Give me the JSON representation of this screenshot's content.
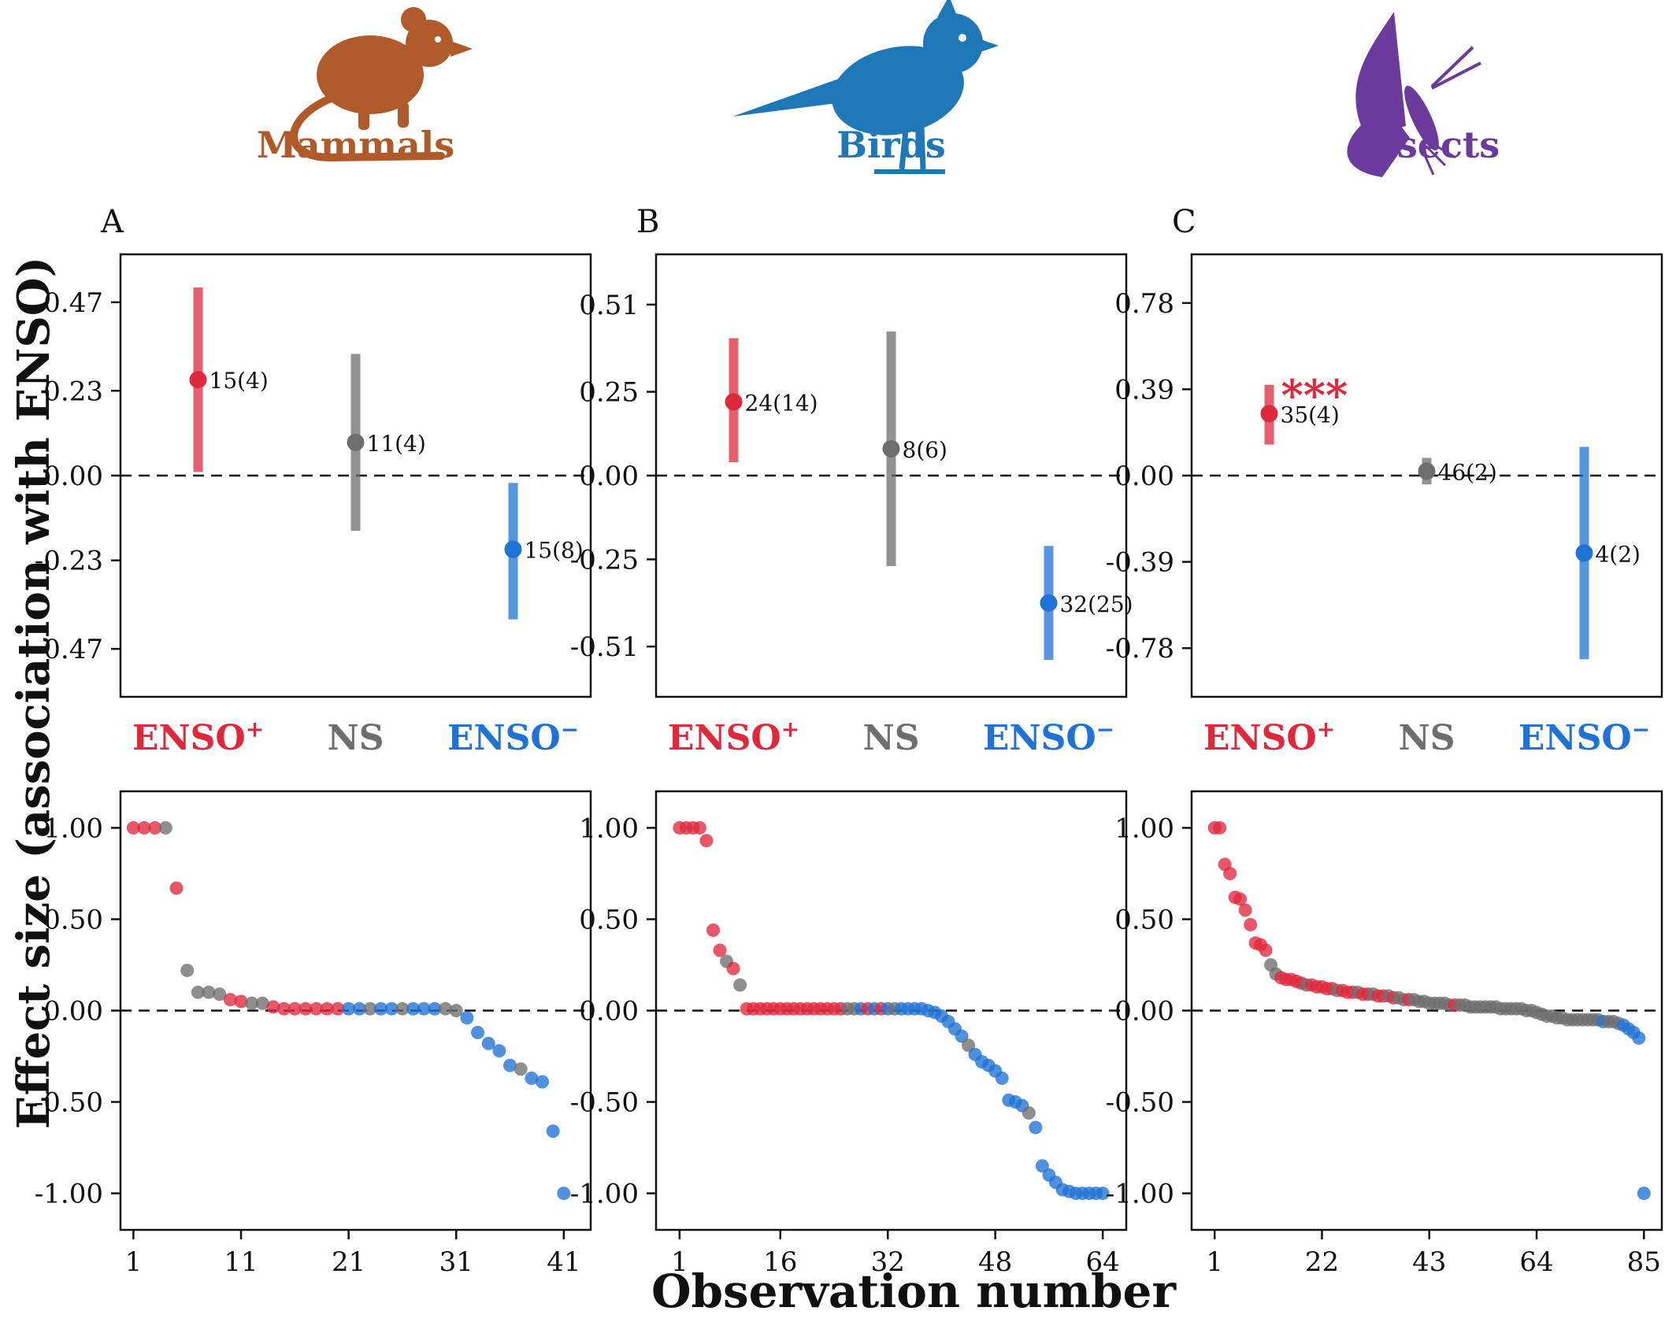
{
  "figure": {
    "ylabel": "Effect size (association with ENSO)",
    "xlabel": "Observation number",
    "category_labels": [
      "ENSO",
      "NS",
      "ENSO"
    ],
    "category_superscripts": [
      "+",
      "",
      "−"
    ]
  },
  "colors": {
    "enso_pos": "#e0283c",
    "ns": "#6e6e6e",
    "enso_neg": "#1f72d6",
    "mammals": "#b05a2a",
    "birds": "#1e78b8",
    "insects": "#6a3b9c"
  },
  "panels": [
    {
      "letter": "A",
      "taxon": "Mammals",
      "taxon_color": "#b05a2a",
      "icon": "mouse-icon",
      "summary": {
        "ylim": [
          -0.6,
          0.6
        ],
        "yticks": [
          "0.47",
          "0.23",
          "0.00",
          "-0.23",
          "-0.47"
        ],
        "ytick_values": [
          0.47,
          0.23,
          0.0,
          -0.23,
          -0.47
        ],
        "points": [
          {
            "category": "ENSO+",
            "mean": 0.26,
            "low": 0.01,
            "high": 0.51,
            "label": "15(4)",
            "color": "#e0283c"
          },
          {
            "category": "NS",
            "mean": 0.09,
            "low": -0.15,
            "high": 0.33,
            "label": "11(4)",
            "color": "#6e6e6e"
          },
          {
            "category": "ENSO-",
            "mean": -0.2,
            "low": -0.39,
            "high": -0.02,
            "label": "15(8)",
            "color": "#1f72d6"
          }
        ]
      },
      "observations": {
        "xticks": [
          "1",
          "11",
          "21",
          "31",
          "41"
        ],
        "xtick_values": [
          1,
          11,
          21,
          31,
          41
        ],
        "xlim": [
          -0.2,
          43.5
        ],
        "yticks": [
          "1.00",
          "0.50",
          "0.00",
          "-0.50",
          "-1.00"
        ],
        "ytick_values": [
          1.0,
          0.5,
          0.0,
          -0.5,
          -1.0
        ],
        "ylim": [
          -1.2,
          1.2
        ]
      }
    },
    {
      "letter": "B",
      "taxon": "Birds",
      "taxon_color": "#1e78b8",
      "icon": "bird-icon",
      "summary": {
        "ylim": [
          -0.66,
          0.66
        ],
        "yticks": [
          "0.51",
          "0.25",
          "0.00",
          "-0.25",
          "-0.51"
        ],
        "ytick_values": [
          0.51,
          0.25,
          0.0,
          -0.25,
          -0.51
        ],
        "points": [
          {
            "category": "ENSO+",
            "mean": 0.22,
            "low": 0.04,
            "high": 0.41,
            "label": "24(14)",
            "color": "#e0283c"
          },
          {
            "category": "NS",
            "mean": 0.08,
            "low": -0.27,
            "high": 0.43,
            "label": "8(6)",
            "color": "#6e6e6e"
          },
          {
            "category": "ENSO-",
            "mean": -0.38,
            "low": -0.55,
            "high": -0.21,
            "label": "32(25)",
            "color": "#1f72d6"
          }
        ]
      },
      "observations": {
        "xticks": [
          "1",
          "16",
          "32",
          "48",
          "64"
        ],
        "xtick_values": [
          1,
          16,
          32,
          48,
          64
        ],
        "xlim": [
          -2.5,
          67.5
        ],
        "yticks": [
          "1.00",
          "0.50",
          "0.00",
          "-0.50",
          "-1.00"
        ],
        "ytick_values": [
          1.0,
          0.5,
          0.0,
          -0.5,
          -1.0
        ],
        "ylim": [
          -1.2,
          1.2
        ]
      }
    },
    {
      "letter": "C",
      "taxon": "Insects",
      "taxon_color": "#6a3b9c",
      "icon": "butterfly-icon",
      "summary": {
        "ylim": [
          -1.0,
          1.0
        ],
        "yticks": [
          "0.78",
          "0.39",
          "0.00",
          "-0.39",
          "-0.78"
        ],
        "ytick_values": [
          0.78,
          0.39,
          0.0,
          -0.39,
          -0.78
        ],
        "significance": "***",
        "points": [
          {
            "category": "ENSO+",
            "mean": 0.28,
            "low": 0.14,
            "high": 0.41,
            "label": "35(4)",
            "color": "#e0283c"
          },
          {
            "category": "NS",
            "mean": 0.02,
            "low": -0.04,
            "high": 0.08,
            "label": "46(2)",
            "color": "#6e6e6e"
          },
          {
            "category": "ENSO-",
            "mean": -0.35,
            "low": -0.83,
            "high": 0.13,
            "label": "4(2)",
            "color": "#1f72d6"
          }
        ]
      },
      "observations": {
        "xticks": [
          "1",
          "22",
          "43",
          "64",
          "85"
        ],
        "xtick_values": [
          1,
          22,
          43,
          64,
          85
        ],
        "xlim": [
          -3.5,
          88.5
        ],
        "yticks": [
          "1.00",
          "0.50",
          "0.00",
          "-0.50",
          "-1.00"
        ],
        "ytick_values": [
          1.0,
          0.5,
          0.0,
          -0.5,
          -1.0
        ],
        "ylim": [
          -1.2,
          1.2
        ]
      }
    }
  ],
  "chart_data": [
    {
      "type": "scatter",
      "panel": "A",
      "taxon": "Mammals",
      "x": [
        1,
        2,
        3,
        4,
        5,
        6,
        7,
        8,
        9,
        10,
        11,
        12,
        13,
        14,
        15,
        16,
        17,
        18,
        19,
        20,
        21,
        22,
        23,
        24,
        25,
        26,
        27,
        28,
        29,
        30,
        31,
        32,
        33,
        34,
        35,
        36,
        37,
        38,
        39,
        40,
        41
      ],
      "y": [
        1.0,
        1.0,
        1.0,
        1.0,
        0.67,
        0.22,
        0.1,
        0.1,
        0.09,
        0.06,
        0.05,
        0.04,
        0.04,
        0.02,
        0.01,
        0.01,
        0.01,
        0.01,
        0.01,
        0.01,
        0.01,
        0.01,
        0.01,
        0.01,
        0.01,
        0.01,
        0.01,
        0.01,
        0.01,
        0.01,
        0.0,
        -0.04,
        -0.12,
        -0.18,
        -0.22,
        -0.3,
        -0.32,
        -0.37,
        -0.39,
        -0.66,
        -1.0
      ],
      "group": [
        "ENSO+",
        "ENSO+",
        "ENSO+",
        "NS",
        "ENSO+",
        "NS",
        "NS",
        "NS",
        "NS",
        "ENSO+",
        "ENSO+",
        "NS",
        "NS",
        "ENSO+",
        "ENSO+",
        "ENSO+",
        "ENSO+",
        "ENSO+",
        "ENSO+",
        "ENSO+",
        "ENSO-",
        "ENSO-",
        "NS",
        "ENSO-",
        "ENSO-",
        "NS",
        "ENSO-",
        "ENSO-",
        "ENSO-",
        "NS",
        "NS",
        "ENSO-",
        "ENSO-",
        "ENSO-",
        "ENSO-",
        "ENSO-",
        "NS",
        "ENSO-",
        "ENSO-",
        "ENSO-",
        "ENSO-"
      ],
      "xlabel": "Observation number",
      "ylabel": "Effect size (association with ENSO)"
    },
    {
      "type": "scatter",
      "panel": "B",
      "taxon": "Birds",
      "x": [
        1,
        2,
        3,
        4,
        5,
        6,
        7,
        8,
        9,
        10,
        11,
        12,
        13,
        14,
        15,
        16,
        17,
        18,
        19,
        20,
        21,
        22,
        23,
        24,
        25,
        26,
        27,
        28,
        29,
        30,
        31,
        32,
        33,
        34,
        35,
        36,
        37,
        38,
        39,
        40,
        41,
        42,
        43,
        44,
        45,
        46,
        47,
        48,
        49,
        50,
        51,
        52,
        53,
        54,
        55,
        56,
        57,
        58,
        59,
        60,
        61,
        62,
        63,
        64
      ],
      "y": [
        1.0,
        1.0,
        1.0,
        1.0,
        0.93,
        0.44,
        0.33,
        0.27,
        0.23,
        0.14,
        0.01,
        0.01,
        0.01,
        0.01,
        0.01,
        0.01,
        0.01,
        0.01,
        0.01,
        0.01,
        0.01,
        0.01,
        0.01,
        0.01,
        0.01,
        0.01,
        0.01,
        0.01,
        0.01,
        0.01,
        0.01,
        0.01,
        0.01,
        0.01,
        0.01,
        0.01,
        0.01,
        0.0,
        -0.01,
        -0.03,
        -0.06,
        -0.1,
        -0.14,
        -0.19,
        -0.24,
        -0.28,
        -0.3,
        -0.33,
        -0.37,
        -0.49,
        -0.5,
        -0.52,
        -0.56,
        -0.64,
        -0.85,
        -0.9,
        -0.94,
        -0.98,
        -0.99,
        -1.0,
        -1.0,
        -1.0,
        -1.0,
        -1.0
      ],
      "group": [
        "ENSO+",
        "ENSO+",
        "ENSO+",
        "ENSO+",
        "ENSO+",
        "ENSO+",
        "ENSO+",
        "NS",
        "ENSO+",
        "NS",
        "ENSO+",
        "ENSO+",
        "ENSO+",
        "ENSO+",
        "ENSO+",
        "ENSO+",
        "ENSO+",
        "ENSO+",
        "ENSO+",
        "ENSO+",
        "ENSO+",
        "ENSO+",
        "ENSO+",
        "ENSO+",
        "ENSO+",
        "NS",
        "NS",
        "ENSO-",
        "ENSO+",
        "ENSO-",
        "ENSO+",
        "ENSO-",
        "NS",
        "ENSO-",
        "ENSO-",
        "ENSO-",
        "ENSO-",
        "ENSO-",
        "ENSO-",
        "ENSO-",
        "ENSO-",
        "ENSO-",
        "ENSO-",
        "NS",
        "ENSO-",
        "ENSO-",
        "ENSO-",
        "ENSO-",
        "ENSO-",
        "ENSO-",
        "ENSO-",
        "ENSO-",
        "NS",
        "ENSO-",
        "ENSO-",
        "ENSO-",
        "ENSO-",
        "ENSO-",
        "ENSO-",
        "ENSO-",
        "ENSO-",
        "ENSO-",
        "ENSO-",
        "ENSO-"
      ],
      "xlabel": "Observation number",
      "ylabel": "Effect size (association with ENSO)"
    },
    {
      "type": "scatter",
      "panel": "C",
      "taxon": "Insects",
      "x": [
        1,
        2,
        3,
        4,
        5,
        6,
        7,
        8,
        9,
        10,
        11,
        12,
        13,
        14,
        15,
        16,
        17,
        18,
        19,
        20,
        21,
        22,
        23,
        24,
        25,
        26,
        27,
        28,
        29,
        30,
        31,
        32,
        33,
        34,
        35,
        36,
        37,
        38,
        39,
        40,
        41,
        42,
        43,
        44,
        45,
        46,
        47,
        48,
        49,
        50,
        51,
        52,
        53,
        54,
        55,
        56,
        57,
        58,
        59,
        60,
        61,
        62,
        63,
        64,
        65,
        66,
        67,
        68,
        69,
        70,
        71,
        72,
        73,
        74,
        75,
        76,
        77,
        78,
        79,
        80,
        81,
        82,
        83,
        84,
        85
      ],
      "y": [
        1.0,
        1.0,
        0.8,
        0.75,
        0.62,
        0.61,
        0.55,
        0.47,
        0.37,
        0.36,
        0.33,
        0.25,
        0.2,
        0.18,
        0.17,
        0.17,
        0.16,
        0.15,
        0.14,
        0.14,
        0.13,
        0.13,
        0.12,
        0.12,
        0.11,
        0.11,
        0.1,
        0.1,
        0.1,
        0.09,
        0.09,
        0.09,
        0.08,
        0.08,
        0.08,
        0.07,
        0.07,
        0.06,
        0.06,
        0.06,
        0.05,
        0.05,
        0.04,
        0.04,
        0.04,
        0.04,
        0.03,
        0.03,
        0.03,
        0.03,
        0.02,
        0.02,
        0.02,
        0.02,
        0.02,
        0.02,
        0.01,
        0.01,
        0.01,
        0.01,
        0.01,
        0.0,
        0.0,
        -0.01,
        -0.02,
        -0.03,
        -0.03,
        -0.04,
        -0.04,
        -0.05,
        -0.05,
        -0.05,
        -0.05,
        -0.05,
        -0.05,
        -0.05,
        -0.06,
        -0.06,
        -0.06,
        -0.07,
        -0.08,
        -0.1,
        -0.12,
        -0.15,
        -1.0
      ],
      "group": [
        "ENSO+",
        "ENSO+",
        "ENSO+",
        "ENSO+",
        "ENSO+",
        "ENSO+",
        "ENSO+",
        "ENSO+",
        "ENSO+",
        "ENSO+",
        "ENSO+",
        "NS",
        "NS",
        "ENSO+",
        "ENSO+",
        "ENSO+",
        "ENSO+",
        "ENSO+",
        "NS",
        "ENSO+",
        "ENSO+",
        "ENSO+",
        "ENSO+",
        "ENSO+",
        "NS",
        "ENSO+",
        "ENSO+",
        "ENSO+",
        "NS",
        "ENSO+",
        "ENSO+",
        "NS",
        "ENSO+",
        "ENSO+",
        "NS",
        "ENSO+",
        "NS",
        "NS",
        "ENSO+",
        "NS",
        "NS",
        "NS",
        "NS",
        "NS",
        "NS",
        "NS",
        "NS",
        "ENSO+",
        "NS",
        "NS",
        "NS",
        "NS",
        "NS",
        "NS",
        "NS",
        "NS",
        "NS",
        "NS",
        "NS",
        "NS",
        "NS",
        "NS",
        "NS",
        "NS",
        "NS",
        "NS",
        "NS",
        "NS",
        "NS",
        "NS",
        "NS",
        "NS",
        "NS",
        "NS",
        "NS",
        "NS",
        "ENSO-",
        "NS",
        "NS",
        "NS",
        "ENSO-",
        "ENSO-",
        "ENSO-",
        "ENSO-",
        "ENSO-"
      ],
      "xlabel": "Observation number",
      "ylabel": "Effect size (association with ENSO)"
    }
  ]
}
